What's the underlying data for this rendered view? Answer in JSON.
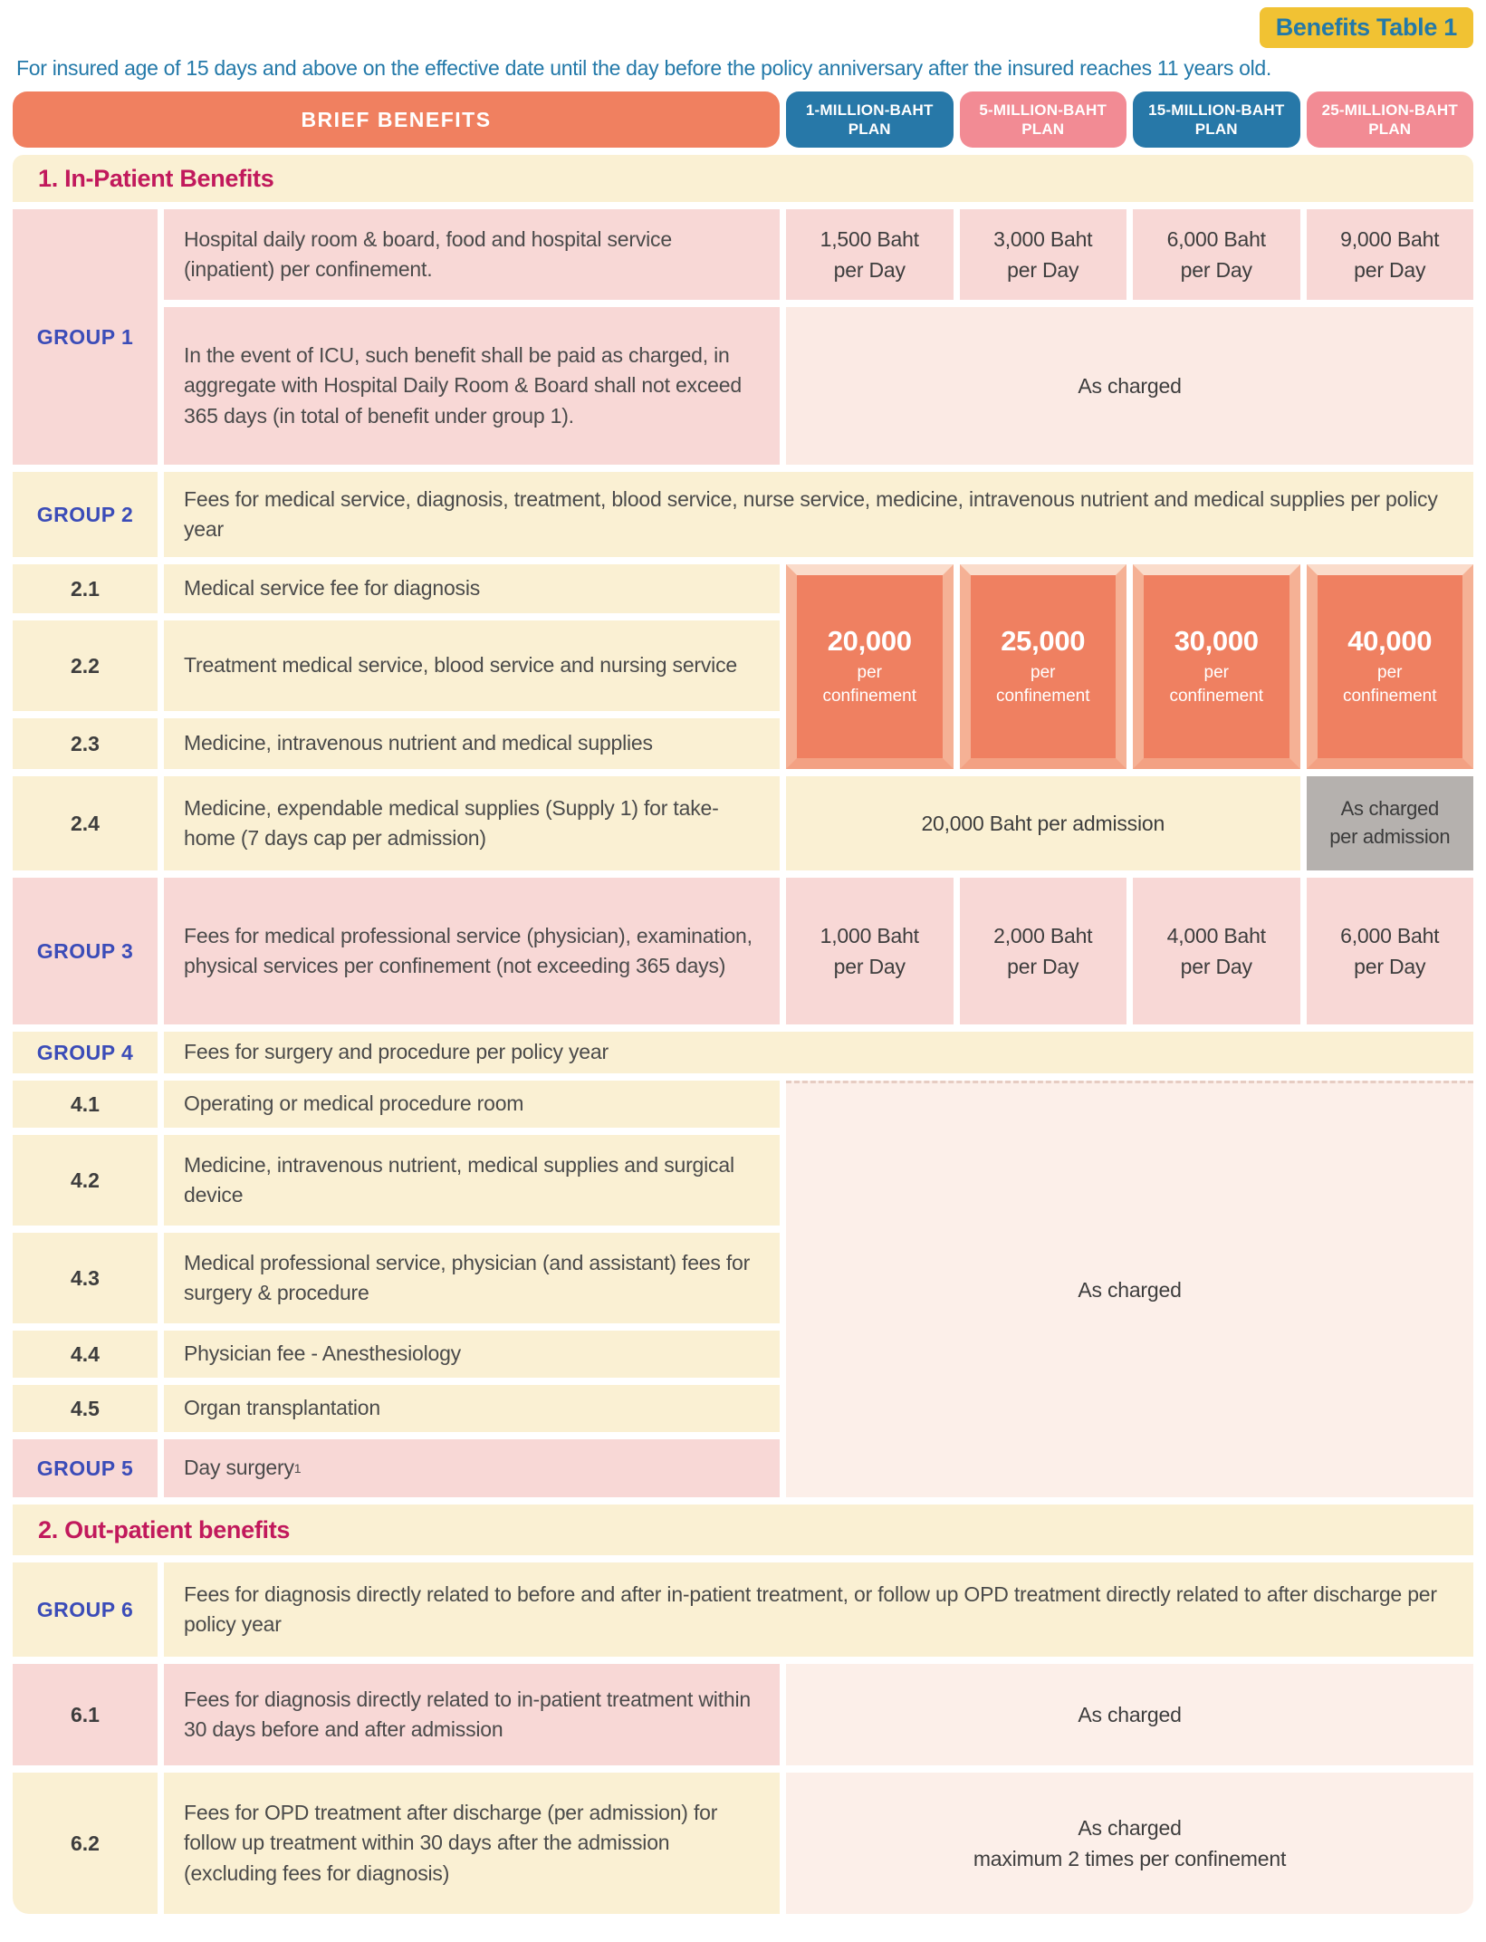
{
  "badge": "Benefits Table 1",
  "intro": "For insured age of 15 days and above on the effective date until the day before the policy anniversary after the insured reaches 11 years old.",
  "header": {
    "brief_benefits": "BRIEF BENEFITS",
    "plans": [
      {
        "line1": "1-MILLION-BAHT",
        "line2": "PLAN",
        "color": "#2778a8"
      },
      {
        "line1": "5-MILLION-BAHT",
        "line2": "PLAN",
        "color": "#f28b94"
      },
      {
        "line1": "15-MILLION-BAHT",
        "line2": "PLAN",
        "color": "#2778a8"
      },
      {
        "line1": "25-MILLION-BAHT",
        "line2": "PLAN",
        "color": "#f28b94"
      }
    ]
  },
  "sections": {
    "inpatient": "1. In-Patient Benefits",
    "outpatient": "2. Out-patient benefits"
  },
  "rows": {
    "group1": {
      "label": "GROUP 1",
      "room_desc": "Hospital daily room & board, food and hospital service (inpatient) per confinement.",
      "room_values": [
        {
          "amount": "1,500 Baht",
          "unit": "per Day"
        },
        {
          "amount": "3,000 Baht",
          "unit": "per Day"
        },
        {
          "amount": "6,000 Baht",
          "unit": "per Day"
        },
        {
          "amount": "9,000 Baht",
          "unit": "per Day"
        }
      ],
      "icu_desc": "In the event of ICU, such benefit shall be paid as charged, in aggregate with Hospital Daily Room & Board shall not exceed 365 days (in total of benefit under group 1).",
      "icu_value": "As charged"
    },
    "group2": {
      "label": "GROUP 2",
      "desc": "Fees for medical service, diagnosis, treatment, blood service, nurse service, medicine, intravenous nutrient and medical supplies per policy year",
      "items": [
        {
          "num": "2.1",
          "desc": "Medical service fee for diagnosis"
        },
        {
          "num": "2.2",
          "desc": "Treatment medical service, blood service and nursing service"
        },
        {
          "num": "2.3",
          "desc": "Medicine, intravenous nutrient and medical supplies"
        }
      ],
      "confinement_values": [
        {
          "amount": "20,000",
          "unit": "per confinement"
        },
        {
          "amount": "25,000",
          "unit": "per confinement"
        },
        {
          "amount": "30,000",
          "unit": "per confinement"
        },
        {
          "amount": "40,000",
          "unit": "per confinement"
        }
      ],
      "item24": {
        "num": "2.4",
        "desc": "Medicine, expendable medical supplies (Supply 1) for take-home (7 days cap per admission)",
        "value_3plans": "20,000 Baht per admission",
        "plan4_line1": "As charged",
        "plan4_line2": "per admission"
      }
    },
    "group3": {
      "label": "GROUP 3",
      "desc": "Fees for medical professional service (physician), examination, physical services per confinement (not exceeding 365 days)",
      "values": [
        {
          "amount": "1,000 Baht",
          "unit": "per Day"
        },
        {
          "amount": "2,000 Baht",
          "unit": "per Day"
        },
        {
          "amount": "4,000 Baht",
          "unit": "per Day"
        },
        {
          "amount": "6,000 Baht",
          "unit": "per Day"
        }
      ]
    },
    "group4": {
      "label": "GROUP 4",
      "desc": "Fees for surgery and procedure per policy year",
      "items": [
        {
          "num": "4.1",
          "desc": "Operating or medical procedure room"
        },
        {
          "num": "4.2",
          "desc": "Medicine, intravenous nutrient, medical supplies and surgical device"
        },
        {
          "num": "4.3",
          "desc": "Medical professional service, physician (and assistant) fees for surgery & procedure"
        },
        {
          "num": "4.4",
          "desc": "Physician fee - Anesthesiology"
        },
        {
          "num": "4.5",
          "desc": "Organ transplantation"
        }
      ],
      "value": "As charged"
    },
    "group5": {
      "label": "GROUP 5",
      "desc": "Day surgery",
      "sup": "1"
    },
    "group6": {
      "label": "GROUP 6",
      "desc": "Fees for diagnosis directly related to before and after in-patient treatment, or follow up OPD treatment directly related to after discharge per policy year",
      "item61": {
        "num": "6.1",
        "desc": "Fees for diagnosis directly related to in-patient treatment within 30 days before and after admission",
        "value": "As charged"
      },
      "item62": {
        "num": "6.2",
        "desc": "Fees for OPD treatment after discharge (per admission) for follow up treatment within 30 days after the admission (excluding fees for diagnosis)",
        "value_line1": "As charged",
        "value_line2": "maximum 2 times per confinement"
      }
    }
  },
  "colors": {
    "badge_bg": "#f1c233",
    "badge_text": "#2379a9",
    "intro_text": "#2379a9",
    "brief_benefits_bg": "#f08060",
    "plan_blue": "#2778a8",
    "plan_pink": "#f28b94",
    "cream_row": "#faf0d3",
    "pink_row": "#f8d8d6",
    "light_pink_value": "#fbeae4",
    "gray_cell": "#b5b1ae",
    "orange_box": "#ef8061",
    "group_label_text": "#3b4cb8",
    "section_title_text": "#c1195c"
  }
}
